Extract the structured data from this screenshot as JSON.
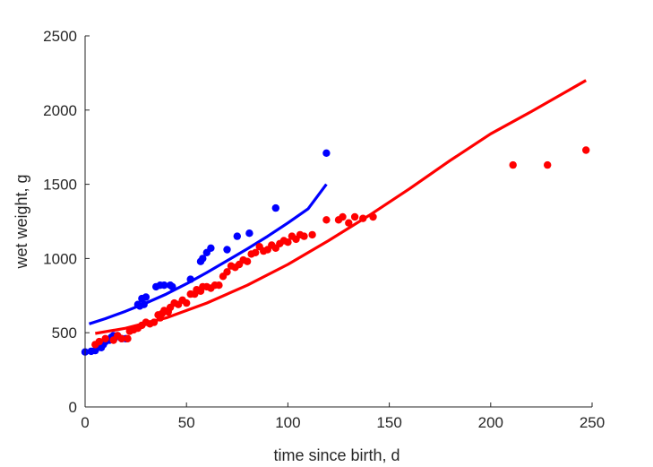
{
  "chart_data": {
    "type": "scatter",
    "xlabel": "time since birth, d",
    "ylabel": "wet weight, g",
    "xlim": [
      0,
      250
    ],
    "ylim": [
      0,
      2500
    ],
    "xticks": [
      0,
      50,
      100,
      150,
      200,
      250
    ],
    "yticks": [
      0,
      500,
      1000,
      1500,
      2000,
      2500
    ],
    "xtick_labels": [
      "0",
      "50",
      "100",
      "150",
      "200",
      "250"
    ],
    "ytick_labels": [
      "0",
      "500",
      "1000",
      "1500",
      "2000",
      "2500"
    ],
    "grid": false,
    "legend": "none",
    "series": [
      {
        "kind": "points",
        "color": "#0000ff",
        "points": [
          [
            0,
            370
          ],
          [
            3,
            375
          ],
          [
            5,
            380
          ],
          [
            6,
            400
          ],
          [
            8,
            400
          ],
          [
            9,
            420
          ],
          [
            10,
            440
          ],
          [
            12,
            450
          ],
          [
            13,
            470
          ],
          [
            14,
            480
          ],
          [
            15,
            470
          ],
          [
            16,
            480
          ],
          [
            18,
            460
          ],
          [
            20,
            460
          ],
          [
            26,
            690
          ],
          [
            27,
            680
          ],
          [
            28,
            730
          ],
          [
            29,
            690
          ],
          [
            30,
            740
          ],
          [
            35,
            810
          ],
          [
            37,
            820
          ],
          [
            39,
            820
          ],
          [
            42,
            820
          ],
          [
            43,
            810
          ],
          [
            52,
            860
          ],
          [
            57,
            980
          ],
          [
            58,
            1000
          ],
          [
            60,
            1040
          ],
          [
            62,
            1070
          ],
          [
            70,
            1060
          ],
          [
            75,
            1150
          ],
          [
            81,
            1170
          ],
          [
            94,
            1340
          ],
          [
            119,
            1710
          ]
        ]
      },
      {
        "kind": "points",
        "color": "#ff0000",
        "points": [
          [
            5,
            420
          ],
          [
            7,
            440
          ],
          [
            10,
            460
          ],
          [
            14,
            450
          ],
          [
            16,
            480
          ],
          [
            18,
            460
          ],
          [
            21,
            460
          ],
          [
            22,
            510
          ],
          [
            24,
            520
          ],
          [
            26,
            530
          ],
          [
            28,
            550
          ],
          [
            30,
            570
          ],
          [
            32,
            560
          ],
          [
            34,
            570
          ],
          [
            36,
            620
          ],
          [
            37,
            600
          ],
          [
            38,
            630
          ],
          [
            39,
            650
          ],
          [
            41,
            640
          ],
          [
            42,
            670
          ],
          [
            44,
            700
          ],
          [
            46,
            690
          ],
          [
            48,
            720
          ],
          [
            50,
            700
          ],
          [
            52,
            760
          ],
          [
            54,
            760
          ],
          [
            55,
            790
          ],
          [
            57,
            780
          ],
          [
            58,
            810
          ],
          [
            60,
            810
          ],
          [
            62,
            800
          ],
          [
            64,
            820
          ],
          [
            66,
            820
          ],
          [
            68,
            880
          ],
          [
            70,
            910
          ],
          [
            72,
            950
          ],
          [
            74,
            940
          ],
          [
            76,
            960
          ],
          [
            78,
            990
          ],
          [
            80,
            980
          ],
          [
            82,
            1030
          ],
          [
            84,
            1040
          ],
          [
            86,
            1080
          ],
          [
            88,
            1050
          ],
          [
            90,
            1060
          ],
          [
            92,
            1090
          ],
          [
            94,
            1070
          ],
          [
            96,
            1100
          ],
          [
            98,
            1120
          ],
          [
            100,
            1110
          ],
          [
            102,
            1150
          ],
          [
            104,
            1130
          ],
          [
            106,
            1160
          ],
          [
            108,
            1150
          ],
          [
            112,
            1160
          ],
          [
            119,
            1260
          ],
          [
            125,
            1260
          ],
          [
            127,
            1280
          ],
          [
            130,
            1240
          ],
          [
            133,
            1280
          ],
          [
            137,
            1270
          ],
          [
            142,
            1280
          ],
          [
            211,
            1630
          ],
          [
            228,
            1630
          ],
          [
            247,
            1730
          ]
        ]
      },
      {
        "kind": "line",
        "color": "#0000ff",
        "points": [
          [
            2,
            560
          ],
          [
            10,
            595
          ],
          [
            20,
            645
          ],
          [
            30,
            700
          ],
          [
            40,
            760
          ],
          [
            50,
            830
          ],
          [
            60,
            905
          ],
          [
            70,
            985
          ],
          [
            80,
            1065
          ],
          [
            90,
            1150
          ],
          [
            100,
            1240
          ],
          [
            110,
            1335
          ],
          [
            119,
            1500
          ]
        ]
      },
      {
        "kind": "line",
        "color": "#ff0000",
        "points": [
          [
            5,
            495
          ],
          [
            20,
            530
          ],
          [
            40,
            600
          ],
          [
            60,
            700
          ],
          [
            80,
            820
          ],
          [
            100,
            960
          ],
          [
            120,
            1120
          ],
          [
            140,
            1290
          ],
          [
            160,
            1470
          ],
          [
            180,
            1660
          ],
          [
            200,
            1840
          ],
          [
            220,
            1990
          ],
          [
            247,
            2200
          ]
        ]
      }
    ]
  }
}
